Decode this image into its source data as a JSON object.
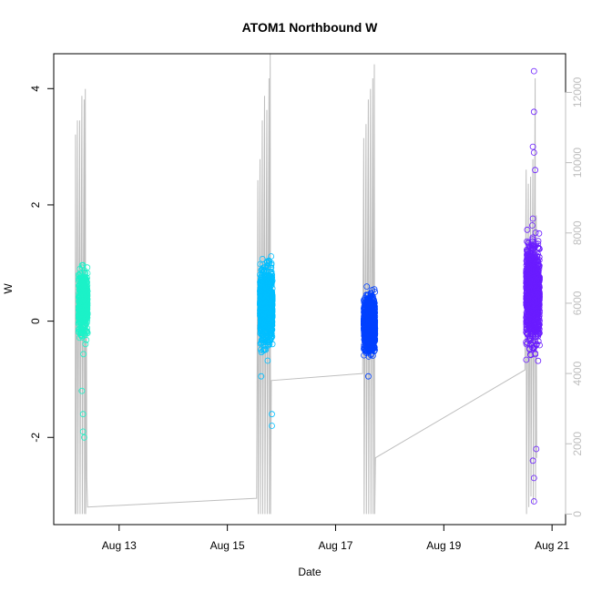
{
  "chart_data": {
    "type": "scatter",
    "title": "ATOM1 Northbound W",
    "xlabel": "Date",
    "ylabel": "W",
    "xlim": [
      "2012-08-11T19:00",
      "2012-08-21T06:00"
    ],
    "ylim": [
      -3.5,
      4.6
    ],
    "ylim_right": [
      -300,
      13100
    ],
    "x_ticks": [
      {
        "date": "2012-08-13",
        "label": "Aug 13"
      },
      {
        "date": "2012-08-15",
        "label": "Aug 15"
      },
      {
        "date": "2012-08-17",
        "label": "Aug 17"
      },
      {
        "date": "2012-08-19",
        "label": "Aug 19"
      },
      {
        "date": "2012-08-21",
        "label": "Aug 21"
      }
    ],
    "y_ticks": [
      "-2",
      "0",
      "2",
      "4"
    ],
    "y_ticks_right": [
      "0",
      "2000",
      "4000",
      "6000",
      "8000",
      "10000",
      "12000"
    ],
    "grid": false,
    "legend": "none",
    "series": [
      {
        "color": "#1cf2c8",
        "start": "2012-08-12T06:00",
        "end": "2012-08-12T10:00",
        "n_points": 450,
        "core_range": [
          -0.9,
          1.5
        ],
        "outliers": [
          {
            "x": "2012-08-12T08:00",
            "y": -1.6
          },
          {
            "x": "2012-08-12T08:00",
            "y": -1.9
          },
          {
            "x": "2012-08-12T08:30",
            "y": -2.0
          },
          {
            "x": "2012-08-12T07:30",
            "y": -1.2
          }
        ]
      },
      {
        "color": "#00bfff",
        "start": "2012-08-15T14:30",
        "end": "2012-08-15T20:00",
        "n_points": 900,
        "core_range": [
          -1.0,
          1.6
        ],
        "outliers": [
          {
            "x": "2012-08-15T19:45",
            "y": -1.6
          },
          {
            "x": "2012-08-15T19:45",
            "y": -1.8
          },
          {
            "x": "2012-08-15T15:00",
            "y": -0.95
          }
        ]
      },
      {
        "color": "#0040ff",
        "start": "2012-08-17T12:30",
        "end": "2012-08-17T17:30",
        "n_points": 900,
        "core_range": [
          -0.95,
          0.9
        ],
        "outliers": [
          {
            "x": "2012-08-17T14:30",
            "y": -0.95
          }
        ]
      },
      {
        "color": "#6a1cff",
        "start": "2012-08-20T12:30",
        "end": "2012-08-20T18:30",
        "n_points": 1100,
        "core_range": [
          -1.2,
          2.2
        ],
        "outliers": [
          {
            "x": "2012-08-20T16:00",
            "y": 4.3
          },
          {
            "x": "2012-08-20T16:00",
            "y": 3.6
          },
          {
            "x": "2012-08-20T15:30",
            "y": 3.0
          },
          {
            "x": "2012-08-20T16:00",
            "y": 2.9
          },
          {
            "x": "2012-08-20T16:30",
            "y": 2.6
          },
          {
            "x": "2012-08-20T16:00",
            "y": -3.1
          },
          {
            "x": "2012-08-20T16:00",
            "y": -2.7
          },
          {
            "x": "2012-08-20T15:30",
            "y": -2.4
          },
          {
            "x": "2012-08-20T17:00",
            "y": -2.2
          }
        ]
      }
    ],
    "secondary_series": {
      "type": "line",
      "color": "#bebebe",
      "points": [
        [
          "2012-08-12T04:30",
          0
        ],
        [
          "2012-08-12T04:40",
          10800
        ],
        [
          "2012-08-12T04:50",
          0
        ],
        [
          "2012-08-12T05:30",
          11200
        ],
        [
          "2012-08-12T05:40",
          0
        ],
        [
          "2012-08-12T06:30",
          11200
        ],
        [
          "2012-08-12T06:40",
          0
        ],
        [
          "2012-08-12T07:30",
          11900
        ],
        [
          "2012-08-12T07:40",
          0
        ],
        [
          "2012-08-12T08:30",
          11800
        ],
        [
          "2012-08-12T08:40",
          0
        ],
        [
          "2012-08-12T09:00",
          12100
        ],
        [
          "2012-08-12T09:10",
          0
        ],
        [
          "2012-08-12T09:30",
          6200
        ],
        [
          "2012-08-12T09:40",
          1000
        ],
        [
          "2012-08-12T10:00",
          200
        ],
        [
          "2012-08-15T13:00",
          450
        ],
        [
          "2012-08-15T13:30",
          9500
        ],
        [
          "2012-08-15T13:40",
          0
        ],
        [
          "2012-08-15T14:30",
          10100
        ],
        [
          "2012-08-15T14:40",
          0
        ],
        [
          "2012-08-15T15:30",
          11200
        ],
        [
          "2012-08-15T15:40",
          0
        ],
        [
          "2012-08-15T16:30",
          11900
        ],
        [
          "2012-08-15T16:40",
          0
        ],
        [
          "2012-08-15T17:30",
          11500
        ],
        [
          "2012-08-15T17:40",
          0
        ],
        [
          "2012-08-15T18:30",
          12400
        ],
        [
          "2012-08-15T18:40",
          0
        ],
        [
          "2012-08-15T19:00",
          13100
        ],
        [
          "2012-08-15T19:10",
          0
        ],
        [
          "2012-08-15T19:30",
          3800
        ],
        [
          "2012-08-17T12:00",
          4000
        ],
        [
          "2012-08-17T12:30",
          10700
        ],
        [
          "2012-08-17T12:40",
          0
        ],
        [
          "2012-08-17T13:30",
          11100
        ],
        [
          "2012-08-17T13:40",
          0
        ],
        [
          "2012-08-17T14:30",
          11800
        ],
        [
          "2012-08-17T14:40",
          0
        ],
        [
          "2012-08-17T15:30",
          12100
        ],
        [
          "2012-08-17T15:40",
          0
        ],
        [
          "2012-08-17T16:30",
          12400
        ],
        [
          "2012-08-17T16:40",
          0
        ],
        [
          "2012-08-17T17:10",
          12800
        ],
        [
          "2012-08-17T17:20",
          0
        ],
        [
          "2012-08-17T17:40",
          1600
        ],
        [
          "2012-08-20T12:00",
          4100
        ],
        [
          "2012-08-20T12:30",
          9800
        ],
        [
          "2012-08-20T12:40",
          0
        ],
        [
          "2012-08-20T13:30",
          9400
        ],
        [
          "2012-08-20T13:40",
          200
        ],
        [
          "2012-08-20T14:30",
          9600
        ],
        [
          "2012-08-20T14:40",
          500
        ],
        [
          "2012-08-20T15:30",
          10100
        ],
        [
          "2012-08-20T15:40",
          300
        ],
        [
          "2012-08-20T16:30",
          12400
        ],
        [
          "2012-08-20T16:40",
          400
        ],
        [
          "2012-08-20T17:00",
          8500
        ],
        [
          "2012-08-20T17:10",
          1600
        ]
      ]
    }
  }
}
